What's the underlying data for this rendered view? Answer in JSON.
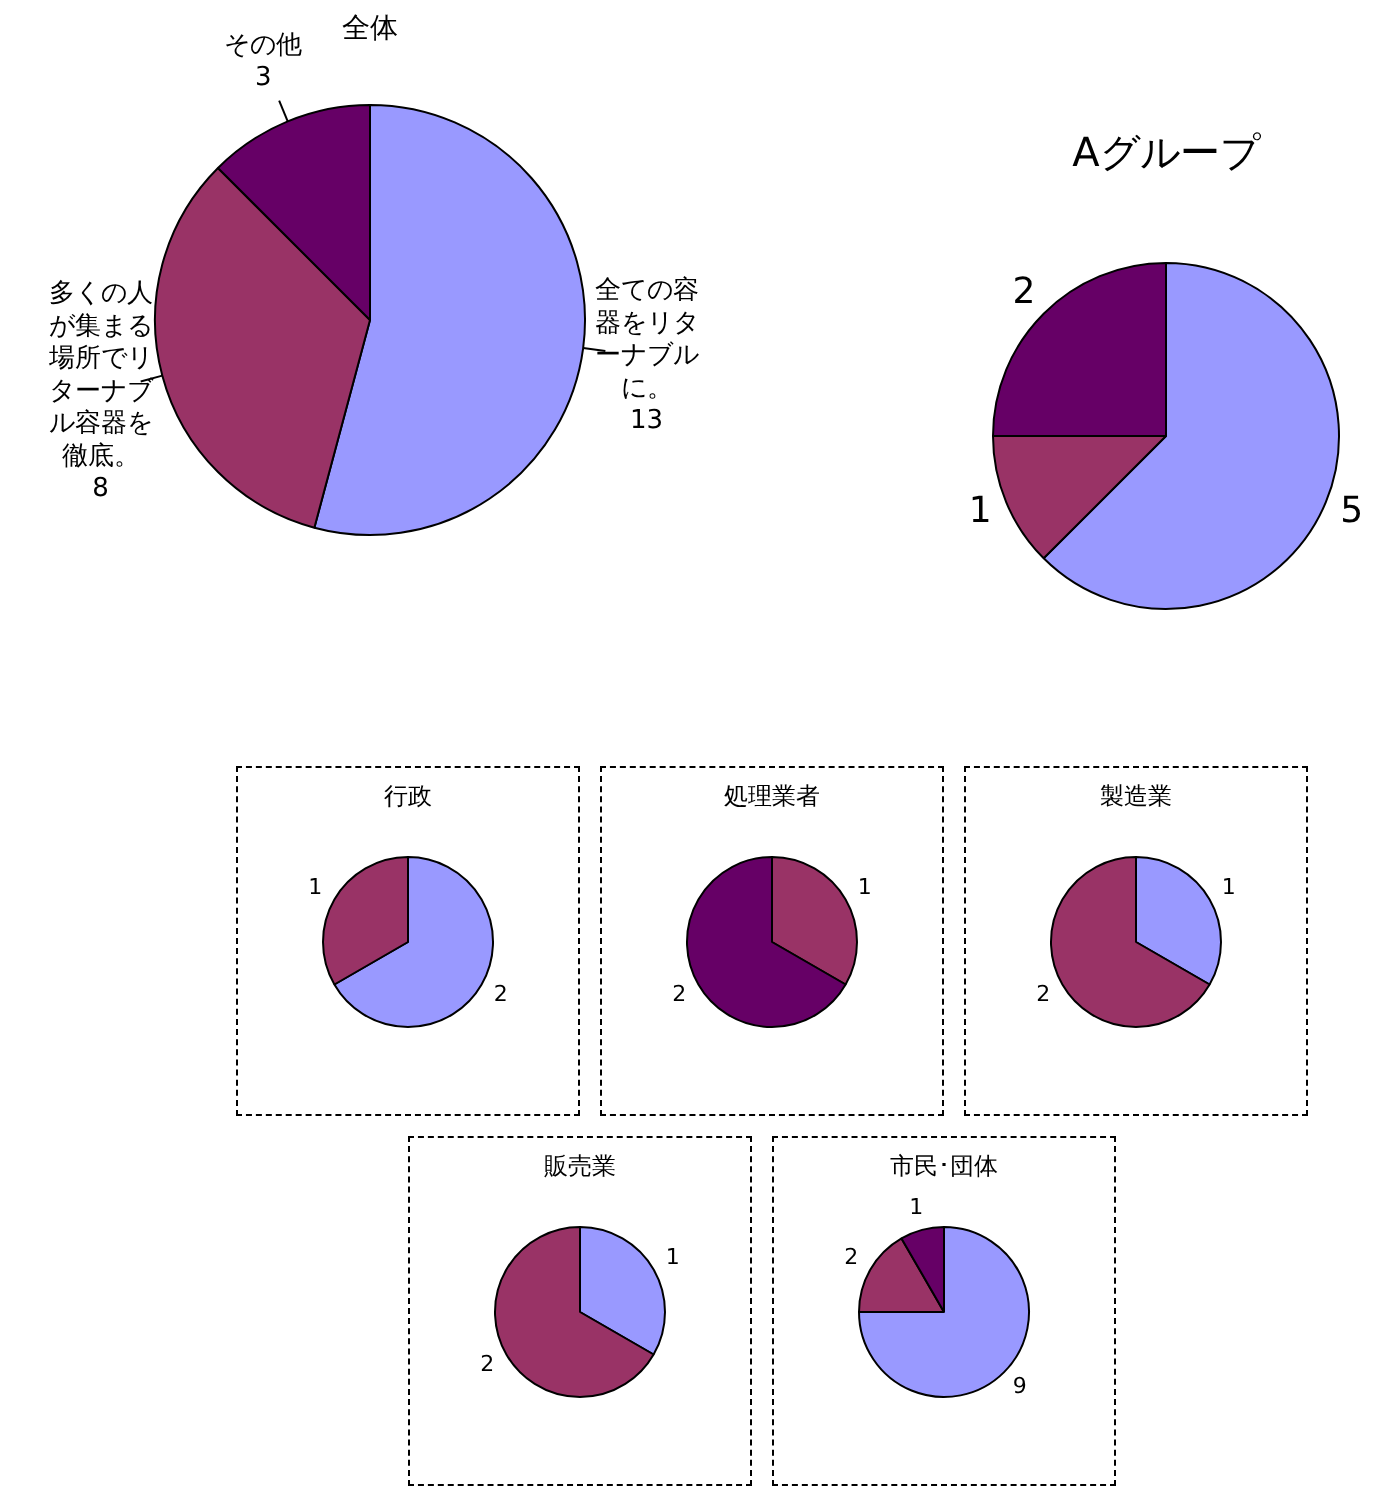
{
  "chart_data": [
    {
      "type": "pie",
      "title": "全体",
      "categories": [
        "全ての容器をリターナブルに。",
        "多くの人が集まる場所でリターナブル容器を徹底。",
        "その他"
      ],
      "values": [
        13,
        8,
        3
      ],
      "colors": [
        "#9999ff",
        "#993366",
        "#660066"
      ],
      "data_labels": true
    },
    {
      "type": "pie",
      "title": "Aグループ",
      "categories": [
        null,
        null,
        null
      ],
      "values": [
        5,
        1,
        2
      ],
      "colors": [
        "#9999ff",
        "#993366",
        "#660066"
      ],
      "data_labels": true
    },
    {
      "type": "pie",
      "title": "行政",
      "categories": [
        null,
        null
      ],
      "values": [
        2,
        1
      ],
      "colors": [
        "#9999ff",
        "#993366"
      ],
      "data_labels": true
    },
    {
      "type": "pie",
      "title": "処理業者",
      "categories": [
        null,
        null
      ],
      "values": [
        1,
        2
      ],
      "colors": [
        "#993366",
        "#660066"
      ],
      "data_labels": true
    },
    {
      "type": "pie",
      "title": "製造業",
      "categories": [
        null,
        null
      ],
      "values": [
        1,
        2
      ],
      "colors": [
        "#9999ff",
        "#993366"
      ],
      "data_labels": true
    },
    {
      "type": "pie",
      "title": "販売業",
      "categories": [
        null,
        null
      ],
      "values": [
        1,
        2
      ],
      "colors": [
        "#9999ff",
        "#993366"
      ],
      "data_labels": true
    },
    {
      "type": "pie",
      "title": "市民･団体",
      "categories": [
        null,
        null,
        null
      ],
      "values": [
        9,
        2,
        1
      ],
      "colors": [
        "#9999ff",
        "#993366",
        "#660066"
      ],
      "data_labels": true
    }
  ]
}
